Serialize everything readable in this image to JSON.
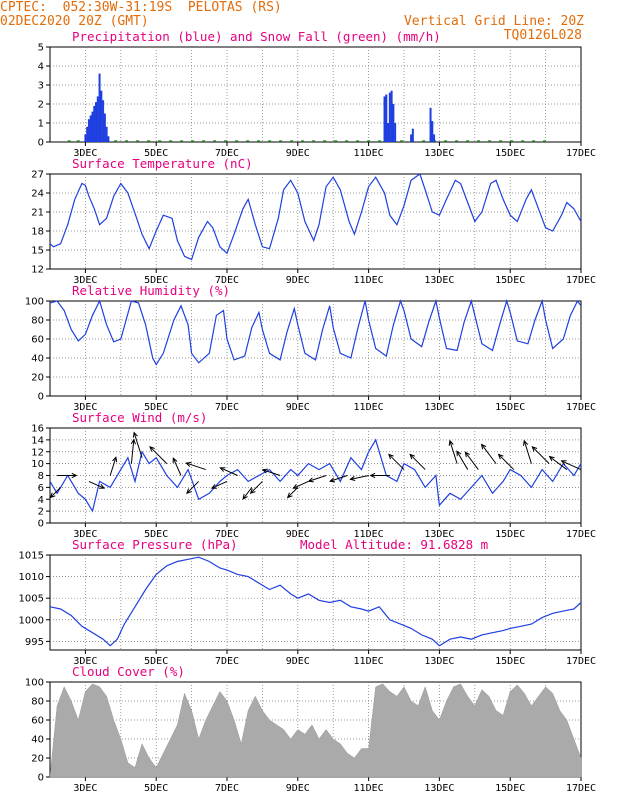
{
  "header": {
    "line1_left": "CPTEC:  052:30W-31:19S  PELOTAS (RS)",
    "line2_left": "02DEC2020 20Z (GMT)",
    "line2_right": "Vertical Grid Line: 20Z",
    "line3_right": "TQ0126L028"
  },
  "colors": {
    "header": "#e36c09",
    "title": "#e6007e",
    "line": "#1f3fe0",
    "snow": "#2ca02c",
    "cloud": "#aaaaaa",
    "wind_arrow": "#000000"
  },
  "chart_data": [
    {
      "type": "bar",
      "title": "Precipitation (blue) and Snow Fall (green) (mm/h)",
      "x_ticks": [
        "3DEC",
        "5DEC",
        "7DEC",
        "9DEC",
        "11DEC",
        "13DEC",
        "15DEC",
        "17DEC"
      ],
      "ylim": [
        0,
        5
      ],
      "y_ticks": [
        0,
        1,
        2,
        3,
        4,
        5
      ],
      "x_range_days": [
        2.0,
        17.0
      ],
      "series": [
        {
          "name": "Precipitation",
          "x": [
            3.0,
            3.05,
            3.1,
            3.15,
            3.2,
            3.25,
            3.3,
            3.35,
            3.4,
            3.45,
            3.5,
            3.55,
            3.6,
            3.65,
            11.45,
            11.5,
            11.55,
            11.6,
            11.65,
            11.7,
            11.75,
            12.2,
            12.25,
            12.75,
            12.8,
            12.85
          ],
          "values": [
            0.4,
            0.8,
            1.2,
            1.4,
            1.6,
            1.9,
            2.1,
            2.4,
            3.6,
            2.7,
            2.2,
            1.5,
            0.8,
            0.3,
            2.4,
            2.5,
            1.0,
            2.6,
            2.7,
            2.0,
            1.0,
            0.4,
            0.7,
            1.8,
            1.1,
            0.4
          ]
        },
        {
          "name": "Snow Fall",
          "values": [
            0
          ]
        }
      ]
    },
    {
      "type": "line",
      "title": "Surface Temperature (nC)",
      "ylim": [
        12,
        27
      ],
      "y_ticks": [
        12,
        15,
        18,
        21,
        24,
        27
      ],
      "x": [
        2.0,
        2.1,
        2.3,
        2.5,
        2.7,
        2.9,
        3.0,
        3.1,
        3.25,
        3.4,
        3.6,
        3.8,
        4.0,
        4.2,
        4.45,
        4.6,
        4.8,
        5.0,
        5.2,
        5.45,
        5.6,
        5.8,
        6.0,
        6.2,
        6.45,
        6.6,
        6.8,
        7.0,
        7.2,
        7.45,
        7.6,
        7.8,
        8.0,
        8.2,
        8.45,
        8.6,
        8.8,
        9.0,
        9.2,
        9.45,
        9.6,
        9.8,
        10.0,
        10.2,
        10.45,
        10.6,
        10.8,
        11.0,
        11.2,
        11.45,
        11.6,
        11.8,
        12.0,
        12.2,
        12.45,
        12.6,
        12.8,
        13.0,
        13.2,
        13.45,
        13.6,
        13.8,
        14.0,
        14.2,
        14.45,
        14.6,
        14.8,
        15.0,
        15.2,
        15.45,
        15.6,
        15.8,
        16.0,
        16.2,
        16.45,
        16.6,
        16.8,
        17.0
      ],
      "values": [
        16.0,
        15.5,
        16.0,
        19.0,
        23.0,
        25.5,
        25.2,
        23.5,
        21.5,
        19.0,
        20.0,
        23.5,
        25.5,
        24.0,
        20.0,
        17.5,
        15.2,
        18.0,
        20.5,
        20.0,
        16.5,
        14.0,
        13.5,
        17.0,
        19.5,
        18.5,
        15.5,
        14.5,
        17.5,
        21.5,
        23.0,
        19.0,
        15.5,
        15.2,
        20.0,
        24.5,
        26.0,
        24.0,
        19.5,
        16.5,
        19.0,
        25.0,
        26.5,
        24.5,
        19.5,
        17.5,
        21.0,
        25.0,
        26.5,
        24.0,
        20.5,
        19.0,
        22.0,
        26.0,
        27.0,
        24.5,
        21.0,
        20.5,
        23.0,
        26.0,
        25.5,
        22.5,
        19.5,
        21.0,
        25.5,
        26.0,
        23.0,
        20.5,
        19.5,
        23.0,
        24.5,
        21.5,
        18.5,
        18.0,
        20.5,
        22.5,
        21.5,
        19.5
      ]
    },
    {
      "type": "line",
      "title": "Relative Humidity (%)",
      "ylim": [
        0,
        100
      ],
      "y_ticks": [
        0,
        20,
        40,
        60,
        80,
        100
      ],
      "x": [
        2.0,
        2.2,
        2.4,
        2.6,
        2.8,
        3.0,
        3.2,
        3.4,
        3.6,
        3.8,
        4.0,
        4.3,
        4.5,
        4.7,
        4.9,
        5.0,
        5.2,
        5.5,
        5.7,
        5.9,
        6.0,
        6.2,
        6.5,
        6.7,
        6.9,
        7.0,
        7.2,
        7.5,
        7.7,
        7.9,
        8.0,
        8.2,
        8.5,
        8.7,
        8.9,
        9.0,
        9.2,
        9.5,
        9.7,
        9.9,
        10.0,
        10.2,
        10.5,
        10.7,
        10.9,
        11.0,
        11.2,
        11.5,
        11.7,
        11.9,
        12.0,
        12.2,
        12.5,
        12.7,
        12.9,
        13.0,
        13.2,
        13.5,
        13.7,
        13.9,
        14.0,
        14.2,
        14.5,
        14.7,
        14.9,
        15.0,
        15.2,
        15.5,
        15.7,
        15.9,
        16.0,
        16.2,
        16.5,
        16.7,
        16.9,
        17.0
      ],
      "values": [
        98,
        100,
        90,
        70,
        58,
        65,
        85,
        100,
        75,
        57,
        60,
        100,
        98,
        75,
        40,
        33,
        45,
        80,
        95,
        75,
        45,
        35,
        45,
        85,
        90,
        60,
        38,
        42,
        72,
        88,
        70,
        45,
        38,
        68,
        92,
        75,
        45,
        38,
        70,
        95,
        72,
        45,
        40,
        72,
        100,
        80,
        50,
        42,
        75,
        100,
        90,
        60,
        52,
        78,
        100,
        82,
        50,
        48,
        78,
        100,
        85,
        55,
        48,
        75,
        100,
        88,
        58,
        55,
        80,
        100,
        80,
        50,
        60,
        85,
        100,
        95
      ]
    },
    {
      "type": "line",
      "title": "Surface Wind (m/s)",
      "ylim": [
        0,
        16
      ],
      "y_ticks": [
        0,
        2,
        4,
        6,
        8,
        10,
        12,
        14,
        16
      ],
      "x": [
        2.0,
        2.2,
        2.5,
        2.8,
        3.0,
        3.2,
        3.4,
        3.7,
        4.0,
        4.2,
        4.4,
        4.6,
        4.8,
        5.0,
        5.3,
        5.6,
        5.9,
        6.2,
        6.5,
        6.8,
        7.0,
        7.3,
        7.6,
        7.9,
        8.2,
        8.5,
        8.8,
        9.0,
        9.3,
        9.6,
        9.9,
        10.2,
        10.5,
        10.8,
        11.0,
        11.2,
        11.5,
        11.8,
        12.0,
        12.3,
        12.6,
        12.9,
        13.0,
        13.3,
        13.6,
        13.9,
        14.2,
        14.5,
        14.8,
        15.0,
        15.3,
        15.6,
        15.9,
        16.2,
        16.5,
        16.8,
        17.0
      ],
      "values": [
        7,
        5,
        8,
        5,
        4,
        2,
        7,
        6,
        9,
        11,
        7,
        12,
        10,
        11,
        8,
        6,
        9,
        4,
        5,
        7,
        8,
        9,
        7,
        8,
        9,
        7,
        9,
        8,
        10,
        9,
        10,
        7,
        11,
        9,
        12,
        14,
        8,
        7,
        10,
        9,
        6,
        8,
        3,
        5,
        4,
        6,
        8,
        5,
        7,
        9,
        8,
        6,
        9,
        7,
        10,
        8,
        10
      ]
    },
    {
      "type": "line",
      "title": "Surface Pressure (hPa)",
      "annotation": "Model Altitude: 91.6828 m",
      "ylim": [
        993,
        1015
      ],
      "y_ticks": [
        995,
        1000,
        1005,
        1010,
        1015
      ],
      "x": [
        2.0,
        2.3,
        2.6,
        2.9,
        3.2,
        3.5,
        3.7,
        3.9,
        4.1,
        4.4,
        4.7,
        5.0,
        5.3,
        5.6,
        5.9,
        6.2,
        6.5,
        6.8,
        7.0,
        7.3,
        7.6,
        7.9,
        8.2,
        8.5,
        8.8,
        9.0,
        9.3,
        9.6,
        9.9,
        10.2,
        10.5,
        10.8,
        11.0,
        11.3,
        11.6,
        11.9,
        12.2,
        12.5,
        12.8,
        13.0,
        13.3,
        13.6,
        13.9,
        14.2,
        14.5,
        14.8,
        15.0,
        15.3,
        15.6,
        15.9,
        16.2,
        16.5,
        16.8,
        17.0
      ],
      "values": [
        1003,
        1002.5,
        1001,
        998.5,
        997,
        995.5,
        994,
        995.5,
        999,
        1003,
        1007,
        1010.5,
        1012.5,
        1013.5,
        1014,
        1014.5,
        1013.5,
        1012,
        1011.5,
        1010.5,
        1010,
        1008.5,
        1007,
        1008,
        1006,
        1005,
        1006,
        1004.5,
        1004,
        1004.5,
        1003,
        1002.5,
        1002,
        1003,
        1000,
        999,
        998,
        996.5,
        995.5,
        994,
        995.5,
        996,
        995.5,
        996.5,
        997,
        997.5,
        998,
        998.5,
        999,
        1000.5,
        1001.5,
        1002,
        1002.5,
        1004
      ]
    },
    {
      "type": "area",
      "title": "Cloud Cover (%)",
      "ylim": [
        0,
        100
      ],
      "y_ticks": [
        0,
        20,
        40,
        60,
        80,
        100
      ],
      "x": [
        2.0,
        2.2,
        2.4,
        2.6,
        2.8,
        3.0,
        3.2,
        3.4,
        3.6,
        3.8,
        4.0,
        4.2,
        4.4,
        4.6,
        4.8,
        5.0,
        5.2,
        5.4,
        5.6,
        5.8,
        6.0,
        6.2,
        6.4,
        6.6,
        6.8,
        7.0,
        7.2,
        7.4,
        7.6,
        7.8,
        8.0,
        8.2,
        8.4,
        8.6,
        8.8,
        9.0,
        9.2,
        9.4,
        9.6,
        9.8,
        10.0,
        10.2,
        10.4,
        10.6,
        10.8,
        11.0,
        11.2,
        11.4,
        11.6,
        11.8,
        12.0,
        12.2,
        12.4,
        12.6,
        12.8,
        13.0,
        13.2,
        13.4,
        13.6,
        13.8,
        14.0,
        14.2,
        14.4,
        14.6,
        14.8,
        15.0,
        15.2,
        15.4,
        15.6,
        15.8,
        16.0,
        16.2,
        16.4,
        16.6,
        16.8,
        17.0
      ],
      "values": [
        0,
        75,
        95,
        80,
        60,
        90,
        98,
        95,
        85,
        60,
        40,
        15,
        10,
        35,
        20,
        10,
        25,
        40,
        55,
        88,
        70,
        40,
        60,
        75,
        90,
        80,
        60,
        35,
        70,
        85,
        70,
        60,
        55,
        50,
        40,
        50,
        45,
        55,
        40,
        50,
        40,
        35,
        25,
        20,
        30,
        30,
        95,
        98,
        90,
        85,
        95,
        80,
        75,
        95,
        70,
        60,
        80,
        95,
        98,
        85,
        75,
        92,
        85,
        70,
        65,
        90,
        97,
        88,
        75,
        85,
        95,
        88,
        70,
        60,
        40,
        20
      ]
    },
    {
      "type": "quiver",
      "title": "Surface Wind (m/s)",
      "arrows": [
        {
          "x": 2.2,
          "speed": 8.0,
          "u": 1.0,
          "v": 0.0
        },
        {
          "x": 2.3,
          "speed": 6.0,
          "u": -0.7,
          "v": -0.7
        },
        {
          "x": 3.1,
          "speed": 7.0,
          "u": 0.9,
          "v": -0.4
        },
        {
          "x": 3.7,
          "speed": 8.0,
          "u": 0.3,
          "v": 0.95
        },
        {
          "x": 4.3,
          "speed": 10.0,
          "u": 0.1,
          "v": 1.0
        },
        {
          "x": 4.6,
          "speed": 11.0,
          "u": -0.3,
          "v": 0.95
        },
        {
          "x": 5.3,
          "speed": 10.0,
          "u": -0.7,
          "v": 0.7
        },
        {
          "x": 5.7,
          "speed": 8.0,
          "u": -0.4,
          "v": 0.9
        },
        {
          "x": 6.2,
          "speed": 7.0,
          "u": -0.7,
          "v": -0.7
        },
        {
          "x": 6.4,
          "speed": 9.0,
          "u": -0.9,
          "v": 0.3
        },
        {
          "x": 7.0,
          "speed": 7.0,
          "u": -0.9,
          "v": -0.4
        },
        {
          "x": 7.3,
          "speed": 8.0,
          "u": -0.9,
          "v": 0.4
        },
        {
          "x": 7.7,
          "speed": 6.0,
          "u": -0.6,
          "v": -0.8
        },
        {
          "x": 8.0,
          "speed": 7.0,
          "u": -0.7,
          "v": -0.7
        },
        {
          "x": 8.5,
          "speed": 8.0,
          "u": -0.9,
          "v": 0.3
        },
        {
          "x": 9.0,
          "speed": 6.0,
          "u": -0.7,
          "v": -0.7
        },
        {
          "x": 9.3,
          "speed": 7.0,
          "u": -0.9,
          "v": -0.4
        },
        {
          "x": 9.8,
          "speed": 8.0,
          "u": -0.9,
          "v": -0.3
        },
        {
          "x": 10.4,
          "speed": 8.0,
          "u": -0.9,
          "v": -0.3
        },
        {
          "x": 11.0,
          "speed": 8.0,
          "u": -0.95,
          "v": -0.2
        },
        {
          "x": 11.6,
          "speed": 8.0,
          "u": -1.0,
          "v": 0.0
        },
        {
          "x": 12.0,
          "speed": 9.0,
          "u": -0.7,
          "v": 0.7
        },
        {
          "x": 12.6,
          "speed": 9.0,
          "u": -0.7,
          "v": 0.7
        },
        {
          "x": 13.5,
          "speed": 10.0,
          "u": -0.3,
          "v": 0.95
        },
        {
          "x": 13.8,
          "speed": 9.0,
          "u": -0.5,
          "v": 0.85
        },
        {
          "x": 14.1,
          "speed": 9.0,
          "u": -0.6,
          "v": 0.8
        },
        {
          "x": 14.6,
          "speed": 10.0,
          "u": -0.6,
          "v": 0.8
        },
        {
          "x": 15.1,
          "speed": 9.0,
          "u": -0.7,
          "v": 0.7
        },
        {
          "x": 15.6,
          "speed": 10.0,
          "u": -0.3,
          "v": 0.95
        },
        {
          "x": 16.1,
          "speed": 10.0,
          "u": -0.7,
          "v": 0.7
        },
        {
          "x": 16.6,
          "speed": 9.0,
          "u": -0.8,
          "v": 0.6
        },
        {
          "x": 17.0,
          "speed": 9.0,
          "u": -0.9,
          "v": 0.4
        }
      ]
    }
  ]
}
